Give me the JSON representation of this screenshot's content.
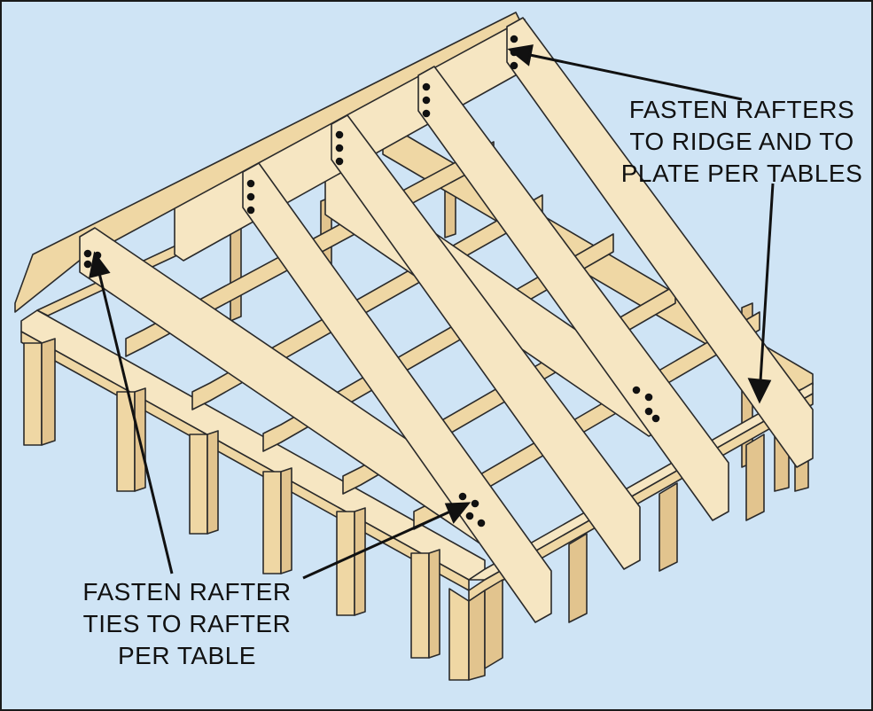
{
  "diagram": {
    "subject": "rafter framing",
    "colors": {
      "background": "#cfe4f5",
      "wood_light": "#f6e6c2",
      "wood_mid": "#efd7a4",
      "wood_dark": "#e2c48e",
      "outline": "#2a2a2a",
      "fastener": "#111111"
    },
    "callouts": {
      "ridge": {
        "lines": [
          "FASTEN RAFTERS",
          "TO RIDGE AND TO",
          "PLATE PER TABLES"
        ]
      },
      "ties": {
        "lines": [
          "FASTEN RAFTER",
          "TIES TO RAFTER",
          "PER TABLE"
        ]
      }
    }
  }
}
